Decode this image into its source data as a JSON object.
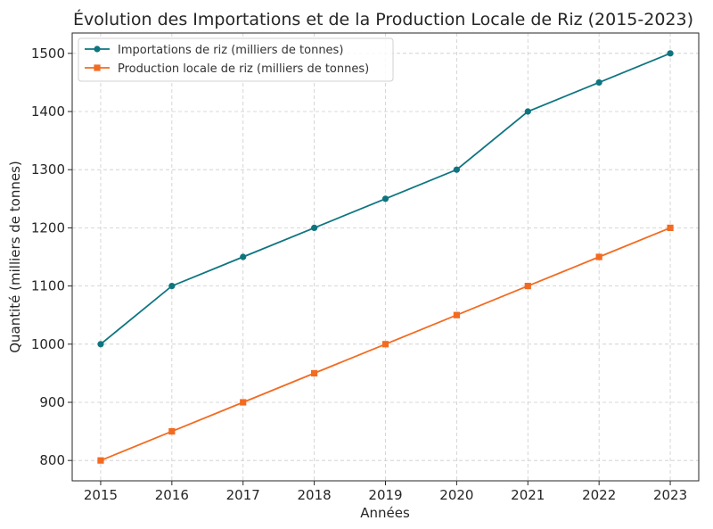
{
  "chart_data": {
    "type": "line",
    "title": "Évolution des Importations et de la Production Locale de Riz (2015-2023)",
    "xlabel": "Années",
    "ylabel": "Quantité (milliers de tonnes)",
    "x": [
      2015,
      2016,
      2017,
      2018,
      2019,
      2020,
      2021,
      2022,
      2023
    ],
    "xticks": [
      "2015",
      "2016",
      "2017",
      "2018",
      "2019",
      "2020",
      "2021",
      "2022",
      "2023"
    ],
    "yticks": [
      800,
      900,
      1000,
      1100,
      1200,
      1300,
      1400,
      1500
    ],
    "ylim": [
      765,
      1535
    ],
    "xlim": [
      2014.6,
      2023.4
    ],
    "grid": true,
    "legend_position": "top-left",
    "series": [
      {
        "name": "Importations de riz (milliers de tonnes)",
        "color": "#0e7580",
        "marker": "circle",
        "values": [
          1000,
          1100,
          1150,
          1200,
          1250,
          1300,
          1400,
          1450,
          1500
        ]
      },
      {
        "name": "Production locale de riz (milliers de tonnes)",
        "color": "#f26b21",
        "marker": "square",
        "values": [
          800,
          850,
          900,
          950,
          1000,
          1050,
          1100,
          1150,
          1200
        ]
      }
    ]
  }
}
